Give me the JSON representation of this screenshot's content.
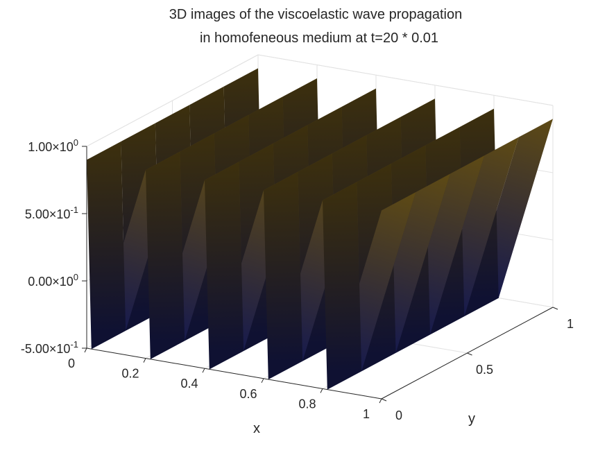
{
  "chart_data": {
    "type": "surface3d",
    "title": [
      "3D images of the viscoelastic wave propagation",
      "in homofeneous medium at t=20 * 0.01"
    ],
    "xlabel": "x",
    "ylabel": "y",
    "zlabel": "",
    "xlim": [
      0,
      1
    ],
    "ylim": [
      0,
      1
    ],
    "zlim": [
      -0.5,
      1.0
    ],
    "x_ticks": [
      0,
      0.2,
      0.4,
      0.6,
      0.8,
      1
    ],
    "x_tick_labels": [
      "0",
      "0.2",
      "0.4",
      "0.6",
      "0.8",
      "1"
    ],
    "y_ticks": [
      0,
      0.5,
      1
    ],
    "y_tick_labels": [
      "0",
      "0.5",
      "1"
    ],
    "z_ticks": [
      1.0,
      0.5,
      0.0,
      -0.5
    ],
    "z_tick_labels": [
      {
        "mantissa": "1.00",
        "exponent": "0"
      },
      {
        "mantissa": "5.00",
        "exponent": "-1"
      },
      {
        "mantissa": "0.00",
        "exponent": "0"
      },
      {
        "mantissa": "-5.00",
        "exponent": "-1"
      }
    ],
    "grid": true,
    "surface": {
      "description_type": "periodic sawtooth ridges",
      "ridge_count_x": 5,
      "ridge_count_y": 5,
      "z_min": -0.5,
      "z_max": 0.9,
      "colormap": [
        "#171a4d",
        "#1a2a6b",
        "#1f3d7a",
        "#0f4a52",
        "#5e4a14"
      ]
    }
  }
}
